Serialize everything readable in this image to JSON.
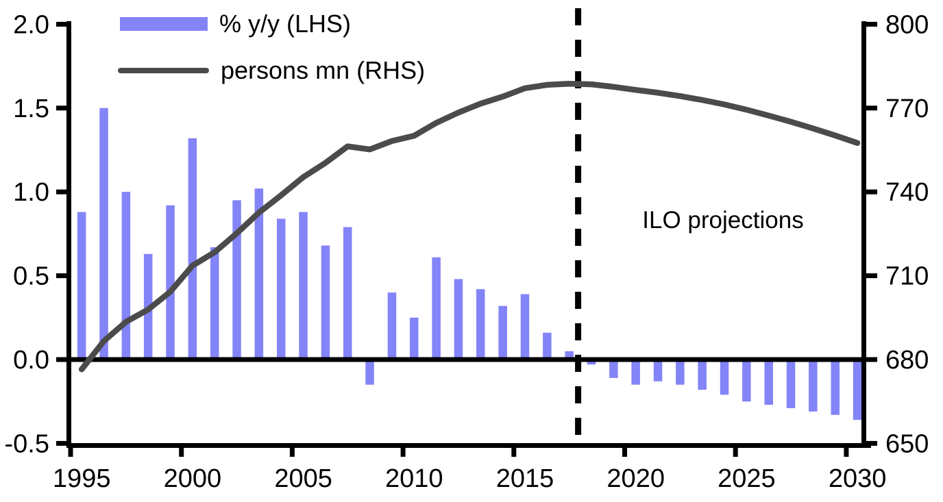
{
  "legend": {
    "bar_label": "% y/y (LHS)",
    "line_label": "persons mn (RHS)"
  },
  "annotations": {
    "projection_label": "ILO projections",
    "projection_divider_x_year": 2017.9
  },
  "colors": {
    "bar": "#8384f8",
    "line": "#4b4b4b",
    "axis": "#000000",
    "background": "#ffffff"
  },
  "chart_data": {
    "type": "combo-bar-line",
    "title": "",
    "xlabel": "",
    "categories": [
      1995,
      1996,
      1997,
      1998,
      1999,
      2000,
      2001,
      2002,
      2003,
      2004,
      2005,
      2006,
      2007,
      2008,
      2009,
      2010,
      2011,
      2012,
      2013,
      2014,
      2015,
      2016,
      2017,
      2018,
      2019,
      2020,
      2021,
      2022,
      2023,
      2024,
      2025,
      2026,
      2027,
      2028,
      2029,
      2030
    ],
    "series": [
      {
        "name": "% y/y (LHS)",
        "type": "bar",
        "axis": "left",
        "color": "#8384f8",
        "values": [
          0.88,
          1.5,
          1.0,
          0.63,
          0.92,
          1.32,
          0.67,
          0.95,
          1.02,
          0.84,
          0.88,
          0.68,
          0.79,
          -0.15,
          0.4,
          0.25,
          0.61,
          0.48,
          0.42,
          0.32,
          0.39,
          0.16,
          0.05,
          -0.03,
          -0.11,
          -0.15,
          -0.13,
          -0.15,
          -0.18,
          -0.21,
          -0.25,
          -0.27,
          -0.29,
          -0.31,
          -0.33,
          -0.36
        ]
      },
      {
        "name": "persons mn (RHS)",
        "type": "line",
        "axis": "right",
        "color": "#4b4b4b",
        "values": [
          676.5,
          686.6,
          693.5,
          697.9,
          704.3,
          713.6,
          718.4,
          725.2,
          732.6,
          738.8,
          745.3,
          750.4,
          756.3,
          755.2,
          758.2,
          760.1,
          764.7,
          768.4,
          771.6,
          774.1,
          777.1,
          778.3,
          778.7,
          778.5,
          777.6,
          776.5,
          775.5,
          774.3,
          772.9,
          771.3,
          769.4,
          767.3,
          765.1,
          762.7,
          760.2,
          757.5
        ]
      }
    ],
    "left_axis": {
      "min": -0.5,
      "max": 2.0,
      "ticks": [
        2.0,
        1.5,
        1.0,
        0.5,
        0.0,
        -0.5
      ],
      "tick_labels": [
        "2.0",
        "1.5",
        "1.0",
        "0.5",
        "0.0",
        "-0.5"
      ]
    },
    "right_axis": {
      "min": 650,
      "max": 800,
      "ticks": [
        800,
        770,
        740,
        710,
        680,
        650
      ],
      "tick_labels": [
        "800",
        "770",
        "740",
        "710",
        "680",
        "650"
      ]
    },
    "x_axis": {
      "ticks": [
        1995,
        2000,
        2005,
        2010,
        2015,
        2020,
        2025,
        2030
      ],
      "tick_labels": [
        "1995",
        "2000",
        "2005",
        "2010",
        "2015",
        "2020",
        "2025",
        "2030"
      ]
    },
    "legend_position": "top-left",
    "grid": false
  }
}
